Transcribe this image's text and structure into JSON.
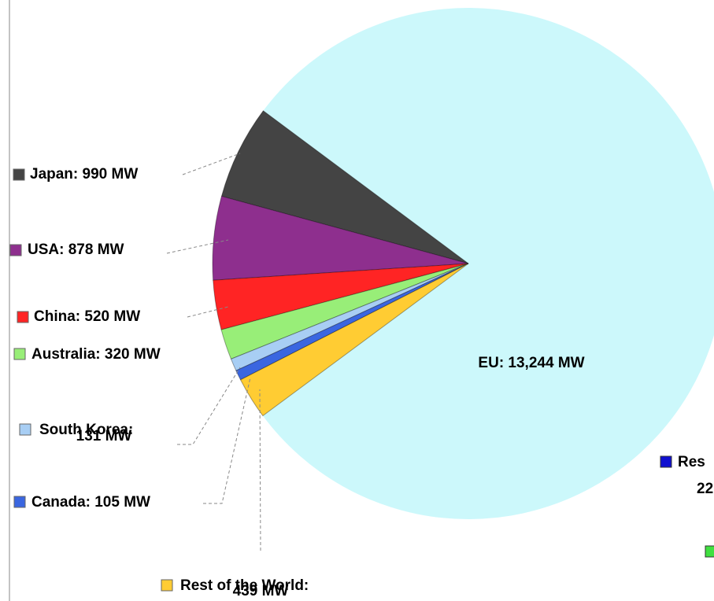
{
  "chart_data": {
    "type": "pie",
    "categories": [
      "EU",
      "Japan",
      "USA",
      "China",
      "Australia",
      "South Korea",
      "Canada",
      "Rest of the World"
    ],
    "values": [
      13244,
      990,
      878,
      520,
      320,
      131,
      105,
      439
    ],
    "labels": [
      [
        "EU: 13,244 MW"
      ],
      [
        "Japan: 990 MW"
      ],
      [
        "USA: 878 MW"
      ],
      [
        "China: 520 MW"
      ],
      [
        "Australia: 320 MW"
      ],
      [
        "South Korea:",
        "131 MW"
      ],
      [
        "Canada: 105 MW"
      ],
      [
        "Rest of the World:",
        "439 MW"
      ]
    ],
    "colors": [
      "#ccf8fb",
      "#444444",
      "#8e2f8e",
      "#ff2424",
      "#98ee78",
      "#a8cef4",
      "#3a66e0",
      "#ffcc33"
    ],
    "cropped_legend": {
      "lines": [
        "Res",
        "22"
      ],
      "colors": [
        "#1010d0",
        "#40e040"
      ]
    }
  }
}
